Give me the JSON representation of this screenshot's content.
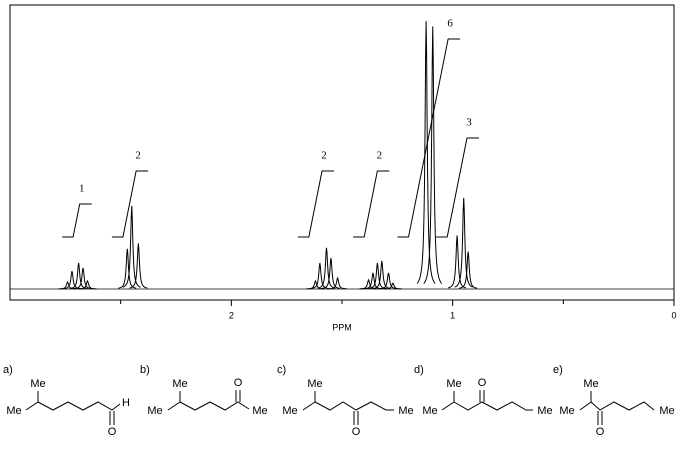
{
  "chart_data": {
    "type": "nmr",
    "xlabel": "PPM",
    "xlim": [
      3,
      0
    ],
    "xticks": [
      2,
      1,
      0
    ],
    "xminorticks": [
      2.5,
      1.5,
      0.5
    ],
    "ylim": [
      0,
      106
    ],
    "peaks": {
      "x": [
        2.74,
        2.72,
        2.69,
        2.67,
        2.65,
        2.47,
        2.45,
        2.42,
        1.62,
        1.6,
        1.57,
        1.55,
        1.52,
        1.38,
        1.36,
        1.34,
        1.32,
        1.29,
        1.27,
        1.12,
        1.09,
        0.98,
        0.95,
        0.93
      ],
      "values": [
        2.6,
        6.7,
        9.7,
        7.9,
        3,
        15,
        31,
        17,
        3,
        9.7,
        15.4,
        11.6,
        4.1,
        3.4,
        6,
        9.7,
        10.5,
        6,
        2.2,
        100,
        98,
        20,
        34,
        14
      ]
    },
    "integrals": {
      "x": [
        2.7,
        2.46,
        1.62,
        1.37,
        1.11,
        0.98
      ],
      "values": [
        1,
        2,
        2,
        2,
        6,
        3
      ]
    }
  },
  "options": [
    {
      "label": "a)",
      "texts": [
        "Me",
        "Me",
        "H",
        "O"
      ]
    },
    {
      "label": "b)",
      "texts": [
        "Me",
        "Me",
        "O",
        "Me"
      ]
    },
    {
      "label": "c)",
      "texts": [
        "Me",
        "Me",
        "O",
        "Me"
      ]
    },
    {
      "label": "d)",
      "texts": [
        "Me",
        "Me",
        "O",
        "Me"
      ]
    },
    {
      "label": "e)",
      "texts": [
        "Me",
        "Me",
        "O",
        "Me"
      ]
    }
  ]
}
